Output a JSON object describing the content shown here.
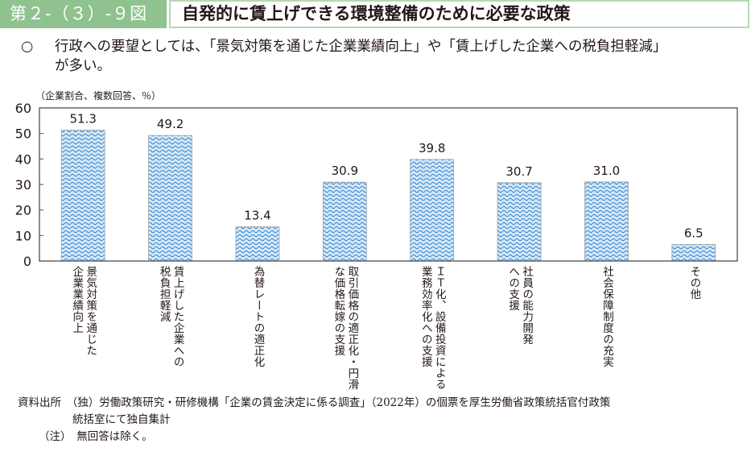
{
  "header": {
    "figure_number": "第２-（３）-９図",
    "title": "自発的に賃上げできる環境整備のために必要な政策"
  },
  "summary": {
    "bullet": "○",
    "line1": "行政への要望としては、「景気対策を通じた企業業績向上」や「賃上げした企業への税負担軽減」",
    "line2": "が多い。"
  },
  "colors": {
    "header_green": "#8fc28f",
    "title_border": "#b5d9b5",
    "bar_fill": "#6fa8dc",
    "bar_light": "#d6e9f8",
    "axis": "#4d4d4d"
  },
  "chart_data": {
    "type": "bar",
    "title": "自発的に賃上げできる環境整備のために必要な政策",
    "ylabel": "（企業割合、複数回答、％）",
    "xlabel": "",
    "ylim": [
      0,
      60
    ],
    "yticks": [
      0,
      10,
      20,
      30,
      40,
      50,
      60
    ],
    "grid": false,
    "categories": [
      "景気対策を通じた\n企業業績向上",
      "賃上げした企業への\n税負担軽減",
      "為替レートの適正化",
      "取引価格の適正化・円滑\nな価格転嫁の支援",
      "ＩＴ化、設備投資による\n業務効率化への支援",
      "社員の能力開発\nへの支援",
      "社会保障制度の充実",
      "その他"
    ],
    "values": [
      51.3,
      49.2,
      13.4,
      30.9,
      39.8,
      30.7,
      31.0,
      6.5
    ],
    "data_labels": [
      "51.3",
      "49.2",
      "13.4",
      "30.9",
      "39.8",
      "30.7",
      "31.0",
      "6.5"
    ]
  },
  "footer": {
    "source_line1": "資料出所　（独）労働政策研究・研修機構「企業の賃金決定に係る調査」（2022年）の個票を厚生労働省政策統括官付政策",
    "source_line2": "統括室にて独自集計",
    "note": "（注）　無回答は除く。"
  }
}
